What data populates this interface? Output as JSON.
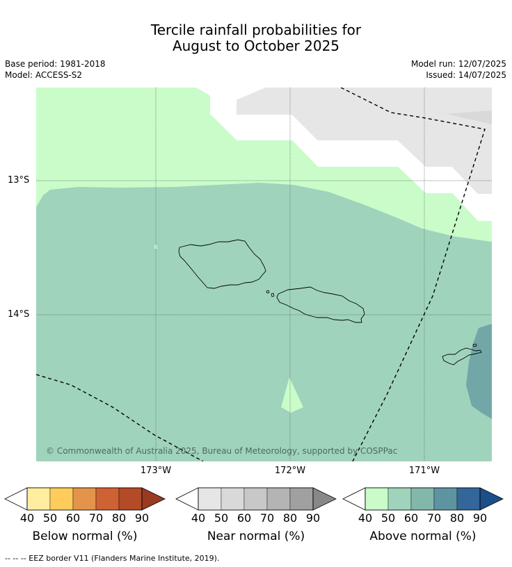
{
  "title": {
    "line1": "Tercile rainfall probabilities for",
    "line2": "August to October 2025"
  },
  "meta": {
    "base_period": "Base period: 1981-2018",
    "model": "Model: ACCESS-S2",
    "model_run": "Model run: 12/07/2025",
    "issued": "Issued: 14/07/2025"
  },
  "map": {
    "lat_labels": [
      "13°S",
      "14°S"
    ],
    "lon_labels": [
      "173°W",
      "172°W",
      "171°W"
    ],
    "copyright": "© Commonwealth of Australia 2025, Bureau of Meteorology, supported by COSPPac"
  },
  "colorbars": [
    {
      "title": "Below normal (%)",
      "ticks": [
        "40",
        "50",
        "60",
        "70",
        "80",
        "90"
      ],
      "colors": [
        "#ffeda0",
        "#fecc5c",
        "#e3944a",
        "#ce6232",
        "#b34a28",
        "#9a3a22"
      ]
    },
    {
      "title": "Near normal (%)",
      "ticks": [
        "40",
        "50",
        "60",
        "70",
        "80",
        "90"
      ],
      "colors": [
        "#e6e6e6",
        "#d9d9d9",
        "#c8c8c8",
        "#b4b4b4",
        "#a0a0a0",
        "#888888"
      ]
    },
    {
      "title": "Above normal (%)",
      "ticks": [
        "40",
        "50",
        "60",
        "70",
        "80",
        "90"
      ],
      "colors": [
        "#c9fcc9",
        "#a0d3bc",
        "#83b7aa",
        "#5e93a1",
        "#336699",
        "#1a4f8a"
      ]
    }
  ],
  "footer": "--  --  -- EEZ border V11 (Flanders Marine Institute, 2019)."
}
